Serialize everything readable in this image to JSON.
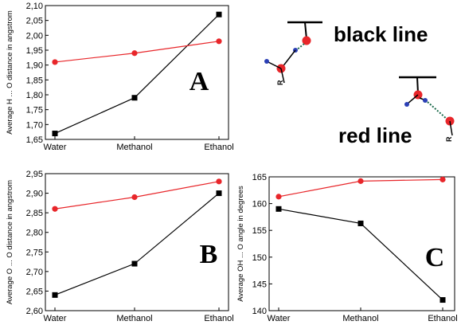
{
  "colors": {
    "black_series": "#000000",
    "red_series": "#e8262a",
    "atom_red": "#e8262a",
    "atom_blue": "#2b3fb5",
    "bond_dotted": "#1a6a4a"
  },
  "chart_data": [
    {
      "type": "line",
      "panel": "A",
      "panel_letter": "A",
      "categories": [
        "Water",
        "Methanol",
        "Ethanol"
      ],
      "ylabel": "Average H ... O distance in angstrom",
      "ylim": [
        1.65,
        2.1
      ],
      "yticks": [
        "1,65",
        "1,70",
        "1,75",
        "1,80",
        "1,85",
        "1,90",
        "1,95",
        "2,00",
        "2,05",
        "2,10"
      ],
      "ytick_values": [
        1.65,
        1.7,
        1.75,
        1.8,
        1.85,
        1.9,
        1.95,
        2.0,
        2.05,
        2.1
      ],
      "series": [
        {
          "color": "black",
          "marker": "square",
          "values": [
            1.67,
            1.79,
            2.07
          ]
        },
        {
          "color": "red",
          "marker": "circle",
          "values": [
            1.91,
            1.94,
            1.98
          ]
        }
      ]
    },
    {
      "type": "line",
      "panel": "B",
      "panel_letter": "B",
      "categories": [
        "Water",
        "Methanol",
        "Ethanol"
      ],
      "ylabel": "Average O ... O distance in angstrom",
      "ylim": [
        2.6,
        2.95
      ],
      "yticks": [
        "2,60",
        "2,65",
        "2,70",
        "2,75",
        "2,80",
        "2,85",
        "2,90",
        "2,95"
      ],
      "ytick_values": [
        2.6,
        2.65,
        2.7,
        2.75,
        2.8,
        2.85,
        2.9,
        2.95
      ],
      "series": [
        {
          "color": "black",
          "marker": "square",
          "values": [
            2.64,
            2.72,
            2.9
          ]
        },
        {
          "color": "red",
          "marker": "circle",
          "values": [
            2.86,
            2.89,
            2.93
          ]
        }
      ]
    },
    {
      "type": "line",
      "panel": "C",
      "panel_letter": "C",
      "categories": [
        "Water",
        "Methanol",
        "Ethanol"
      ],
      "ylabel": "Average OH ... O angle in degrees",
      "ylim": [
        140,
        165
      ],
      "yticks": [
        "140",
        "145",
        "150",
        "155",
        "160",
        "165"
      ],
      "ytick_values": [
        140,
        145,
        150,
        155,
        160,
        165
      ],
      "series": [
        {
          "color": "black",
          "marker": "square",
          "values": [
            159.0,
            156.3,
            142.0
          ]
        },
        {
          "color": "red",
          "marker": "circle",
          "values": [
            161.3,
            164.2,
            164.5
          ]
        }
      ]
    }
  ],
  "legend": {
    "black_line_label": "black line",
    "red_line_label": "red line",
    "r_label": "R"
  }
}
